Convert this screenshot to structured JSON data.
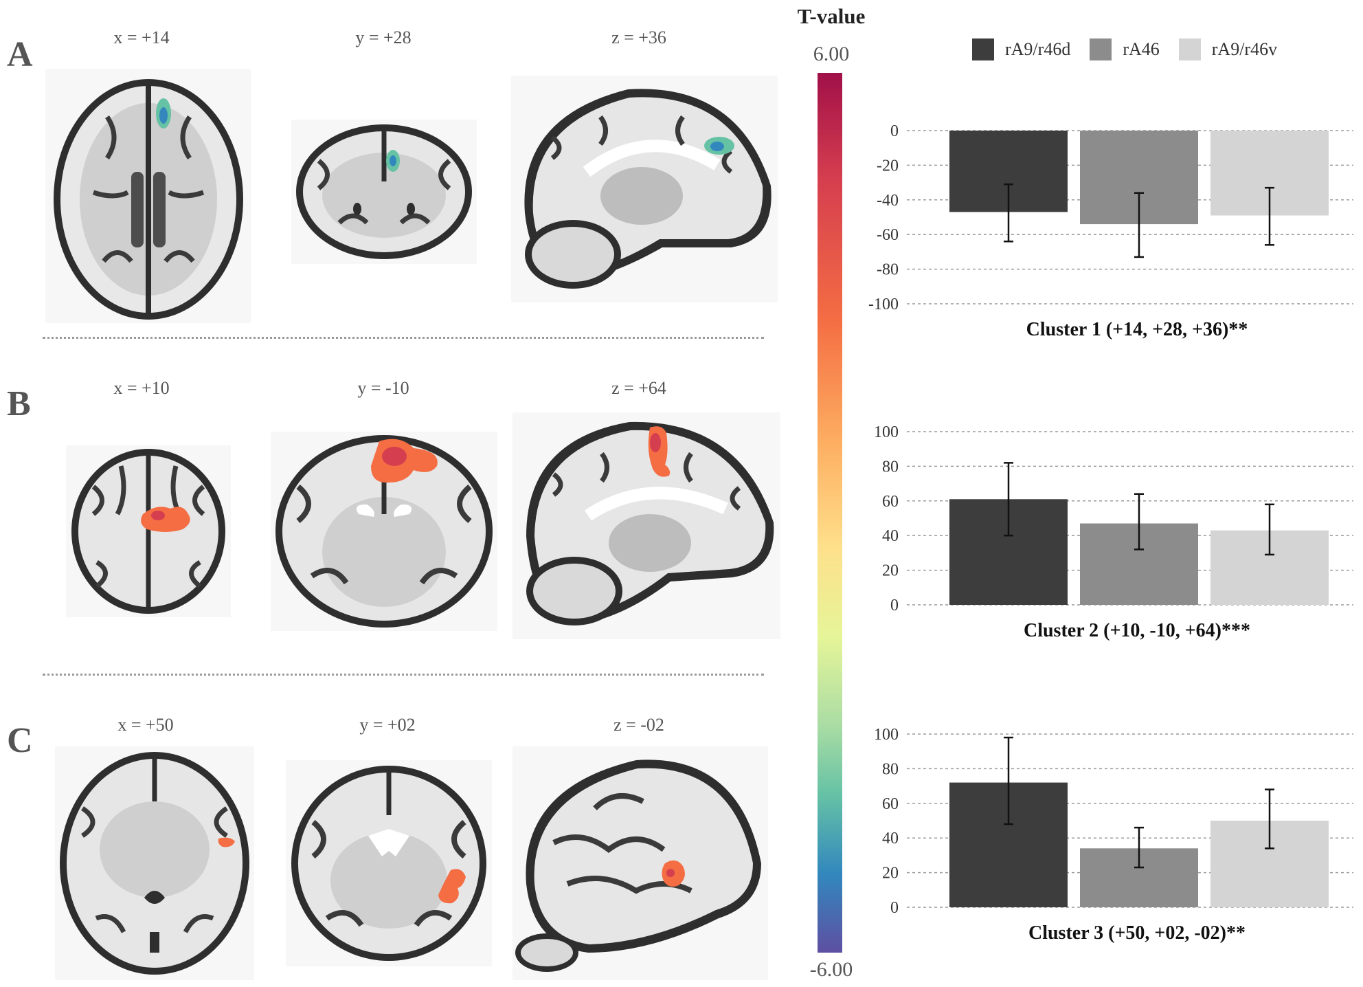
{
  "panels": [
    {
      "letter": "A",
      "coords": [
        "x = +14",
        "y = +28",
        "z = +36"
      ]
    },
    {
      "letter": "B",
      "coords": [
        "x = +10",
        "y = -10",
        "z = +64"
      ]
    },
    {
      "letter": "C",
      "coords": [
        "x = +50",
        "y = +02",
        "z = -02"
      ]
    }
  ],
  "colorbar": {
    "title": "T-value",
    "max_label": "6.00",
    "min_label": "-6.00",
    "colors": [
      "#a11048",
      "#d53e4f",
      "#f46d43",
      "#fdae61",
      "#fee08b",
      "#e6f598",
      "#abdda4",
      "#66c2a5",
      "#3288bd",
      "#5e4fa2"
    ]
  },
  "legend": [
    {
      "label": "rA9/r46d",
      "color": "#3d3d3d"
    },
    {
      "label": "rA46",
      "color": "#8c8c8c"
    },
    {
      "label": "rA9/r46v",
      "color": "#d4d4d4"
    }
  ],
  "chart_data": [
    {
      "type": "bar",
      "title": "Cluster 1 (+14, +28, +36)**",
      "categories": [
        "rA9/r46d",
        "rA46",
        "rA9/r46v"
      ],
      "values": [
        -47,
        -54,
        -49
      ],
      "error_low": [
        -64,
        -73,
        -66
      ],
      "error_high": [
        -31,
        -36,
        -33
      ],
      "ylim": [
        -100,
        0
      ],
      "yticks": [
        0,
        -20,
        -40,
        -60,
        -80,
        -100
      ],
      "grid": true,
      "legend": "top"
    },
    {
      "type": "bar",
      "title": "Cluster 2 (+10, -10, +64)***",
      "categories": [
        "rA9/r46d",
        "rA46",
        "rA9/r46v"
      ],
      "values": [
        61,
        47,
        43
      ],
      "error_low": [
        40,
        32,
        29
      ],
      "error_high": [
        82,
        64,
        58
      ],
      "ylim": [
        0,
        100
      ],
      "yticks": [
        0,
        20,
        40,
        60,
        80,
        100
      ],
      "grid": true
    },
    {
      "type": "bar",
      "title": "Cluster 3 (+50, +02, -02)**",
      "categories": [
        "rA9/r46d",
        "rA46",
        "rA9/r46v"
      ],
      "values": [
        72,
        34,
        50
      ],
      "error_low": [
        48,
        23,
        34
      ],
      "error_high": [
        98,
        46,
        68
      ],
      "ylim": [
        0,
        100
      ],
      "yticks": [
        0,
        20,
        40,
        60,
        80,
        100
      ],
      "grid": true
    }
  ]
}
